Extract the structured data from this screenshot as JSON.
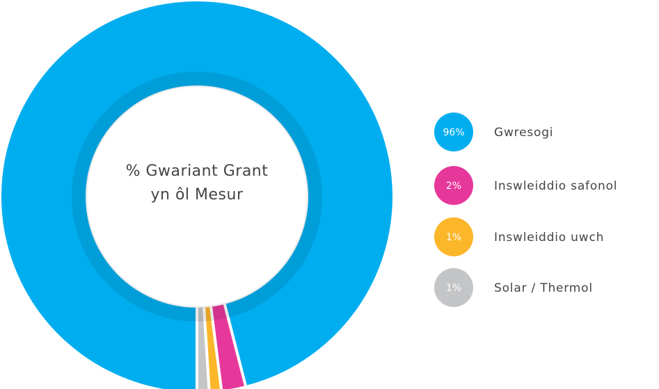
{
  "chart_data": {
    "type": "pie",
    "donut": true,
    "title": "% Gwariant Grant yn ôl Mesur",
    "categories": [
      "Gwresogi",
      "Inswleiddio safonol",
      "Inswleiddio uwch",
      "Solar / Thermol"
    ],
    "values": [
      96,
      2,
      1,
      1
    ],
    "value_labels": [
      "96%",
      "2%",
      "1%",
      "1%"
    ],
    "colors": [
      "#00aeef",
      "#e6379a",
      "#fbb62a",
      "#c4c5c7"
    ],
    "legend": "right"
  }
}
